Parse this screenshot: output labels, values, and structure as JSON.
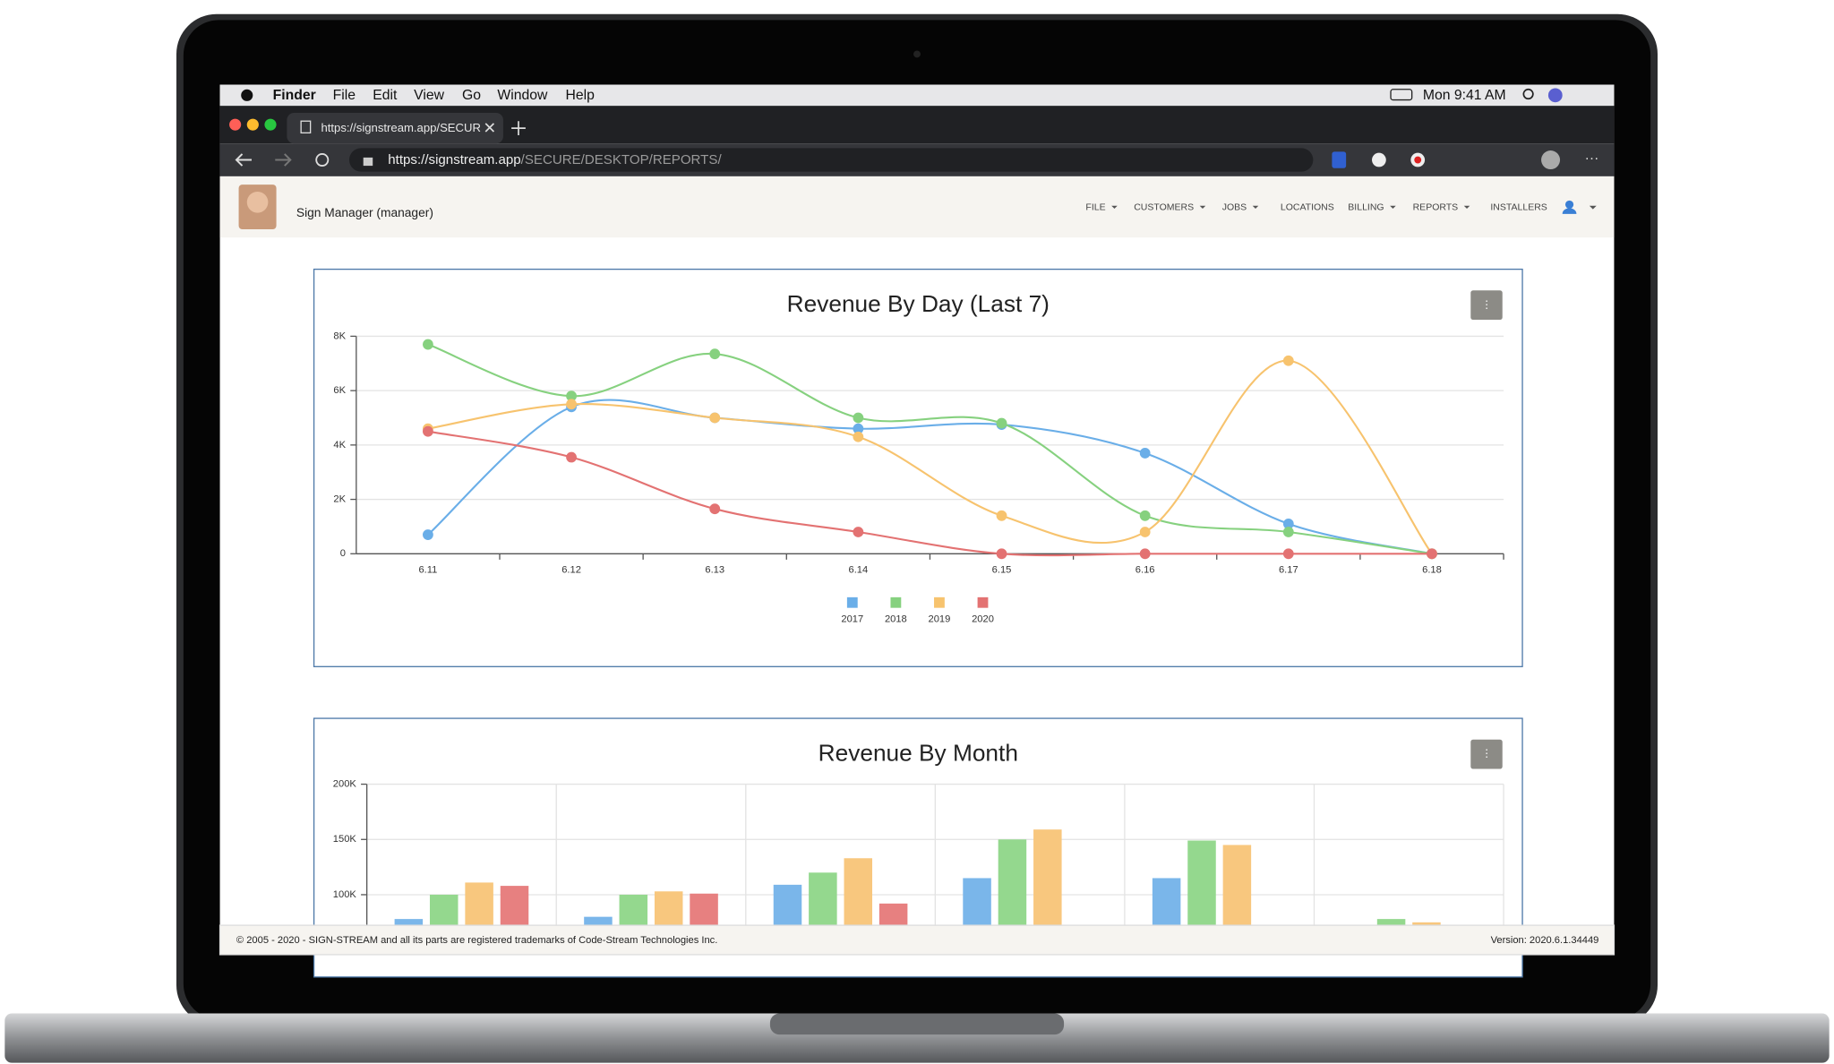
{
  "menubar": {
    "app": "Finder",
    "items": [
      "File",
      "Edit",
      "View",
      "Go",
      "Window",
      "Help"
    ],
    "clock": "Mon 9:41 AM"
  },
  "browser": {
    "tab_title": "https://signstream.app/SECUR",
    "url_host": "https://signstream.app",
    "url_path": "/SECURE/DESKTOP/REPORTS/"
  },
  "app": {
    "user": "Sign Manager (manager)",
    "nav": [
      "FILE",
      "CUSTOMERS",
      "JOBS",
      "LOCATIONS",
      "BILLING",
      "REPORTS",
      "INSTALLERS"
    ]
  },
  "chart_data": [
    {
      "type": "line",
      "title": "Revenue By Day (Last 7)",
      "categories": [
        "6.11",
        "6.12",
        "6.13",
        "6.14",
        "6.15",
        "6.16",
        "6.17",
        "6.18"
      ],
      "series": [
        {
          "name": "2017",
          "color": "#6aaee8",
          "values": [
            700,
            5400,
            5000,
            4600,
            4750,
            3700,
            1100,
            0
          ]
        },
        {
          "name": "2018",
          "color": "#86d17f",
          "values": [
            7700,
            5800,
            7350,
            5000,
            4800,
            1400,
            800,
            0
          ]
        },
        {
          "name": "2019",
          "color": "#f7c36e",
          "values": [
            4600,
            5500,
            5000,
            4300,
            1400,
            800,
            7100,
            0
          ]
        },
        {
          "name": "2020",
          "color": "#e37272",
          "values": [
            4500,
            3550,
            1650,
            800,
            0,
            0,
            0,
            0
          ]
        }
      ],
      "ylim": [
        0,
        8000
      ],
      "yticks": [
        0,
        {
          "value": 2000,
          "label": "2K"
        },
        {
          "value": 4000,
          "label": "4K"
        },
        {
          "value": 6000,
          "label": "6K"
        },
        {
          "value": 8000,
          "label": "8K"
        }
      ],
      "grid": true,
      "smooth": true
    },
    {
      "type": "bar",
      "title": "Revenue By Month",
      "categories": [
        null,
        null,
        null,
        null,
        null,
        null
      ],
      "series": [
        {
          "color": "#7ab6ea",
          "values": [
            78000,
            80000,
            109000,
            115000,
            115000,
            null
          ]
        },
        {
          "color": "#94d88e",
          "values": [
            100000,
            100000,
            120000,
            150000,
            149000,
            78000
          ]
        },
        {
          "color": "#f8c77e",
          "values": [
            111000,
            103000,
            133000,
            159000,
            145000,
            75000
          ]
        },
        {
          "color": "#e78080",
          "values": [
            108000,
            101000,
            92000,
            null,
            null,
            null
          ]
        }
      ],
      "ylim": [
        0,
        200000
      ],
      "yticks": [
        {
          "value": 100000,
          "label": "100K"
        },
        {
          "value": 150000,
          "label": "150K"
        },
        {
          "value": 200000,
          "label": "200K"
        }
      ],
      "grid": true
    }
  ],
  "footer": {
    "copyright": "© 2005 - 2020 - SIGN-STREAM and all its parts are registered trademarks of Code-Stream Technologies Inc.",
    "version": "Version: 2020.6.1.34449"
  }
}
